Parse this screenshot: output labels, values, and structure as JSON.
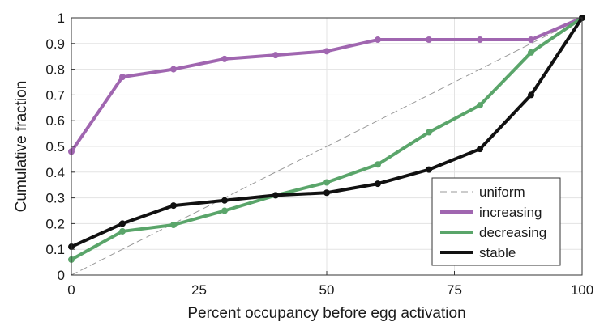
{
  "chart_data": {
    "type": "line",
    "title": "",
    "xlabel": "Percent occupancy before egg activation",
    "ylabel": "Cumulative fraction",
    "xlim": [
      0,
      100
    ],
    "ylim": [
      0,
      1
    ],
    "xticks": [
      0,
      25,
      50,
      75,
      100
    ],
    "xtick_labels": [
      "0",
      "25",
      "50",
      "75",
      "100"
    ],
    "yticks": [
      0,
      0.1,
      0.2,
      0.3,
      0.4,
      0.5,
      0.6,
      0.7,
      0.8,
      0.9,
      1
    ],
    "ytick_labels": [
      "0",
      "0.1",
      "0.2",
      "0.3",
      "0.4",
      "0.5",
      "0.6",
      "0.7",
      "0.8",
      "0.9",
      "1"
    ],
    "grid": true,
    "legend_position": "bottom-right",
    "series": [
      {
        "name": "uniform",
        "color": "#999999",
        "style": "dashed",
        "markers": false,
        "x": [
          0,
          100
        ],
        "y": [
          0,
          1
        ]
      },
      {
        "name": "increasing",
        "color": "#a066b0",
        "style": "solid",
        "markers": true,
        "x": [
          0,
          10,
          20,
          30,
          40,
          50,
          60,
          70,
          80,
          90,
          100
        ],
        "y": [
          0.48,
          0.77,
          0.8,
          0.84,
          0.855,
          0.87,
          0.915,
          0.915,
          0.915,
          0.915,
          1.0
        ]
      },
      {
        "name": "decreasing",
        "color": "#5aa56a",
        "style": "solid",
        "markers": true,
        "x": [
          0,
          10,
          20,
          30,
          40,
          50,
          60,
          70,
          80,
          90,
          100
        ],
        "y": [
          0.06,
          0.17,
          0.195,
          0.25,
          0.31,
          0.36,
          0.43,
          0.555,
          0.66,
          0.865,
          1.0
        ]
      },
      {
        "name": "stable",
        "color": "#111111",
        "style": "solid",
        "markers": true,
        "x": [
          0,
          10,
          20,
          30,
          40,
          50,
          60,
          70,
          80,
          90,
          100
        ],
        "y": [
          0.11,
          0.2,
          0.27,
          0.29,
          0.31,
          0.32,
          0.355,
          0.41,
          0.49,
          0.7,
          1.0
        ]
      }
    ]
  }
}
